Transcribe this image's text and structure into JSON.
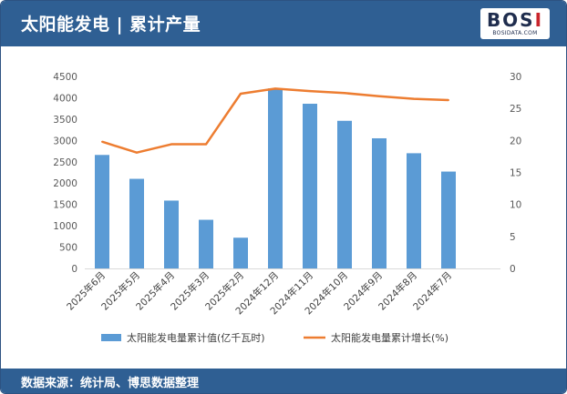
{
  "header": {
    "title": "太阳能发电 | 累计产量",
    "logo_text": "BOSI",
    "logo_subtext": "BOSIDATA.COM"
  },
  "footer": {
    "source": "数据来源：统计局、博思数据整理"
  },
  "colors": {
    "header_bg": "#2f5f93",
    "bar": "#5b9bd5",
    "line": "#ed7d31"
  },
  "chart_data": {
    "type": "bar",
    "categories": [
      "2025年6月",
      "2025年5月",
      "2025年4月",
      "2025年3月",
      "2025年2月",
      "2024年12月",
      "2024年11月",
      "2024年10月",
      "2024年9月",
      "2024年8月",
      "2024年7月"
    ],
    "series": [
      {
        "name": "太阳能发电量累计值(亿千瓦时)",
        "type": "bar",
        "axis": "left",
        "values": [
          2660,
          2100,
          1590,
          1140,
          720,
          4220,
          3860,
          3460,
          3050,
          2700,
          2270
        ]
      },
      {
        "name": "太阳能发电量累计增长(%)",
        "type": "line",
        "axis": "right",
        "values": [
          19.8,
          18.1,
          19.4,
          19.4,
          27.3,
          28.1,
          27.7,
          27.4,
          26.9,
          26.5,
          26.3
        ]
      }
    ],
    "ylim_left": [
      0,
      4500
    ],
    "ylim_right": [
      0,
      30
    ],
    "yticks_left": [
      "0",
      "500",
      "1000",
      "1500",
      "2000",
      "2500",
      "3000",
      "3500",
      "4000",
      "4500"
    ],
    "yticks_right": [
      "0",
      "5",
      "10",
      "15",
      "20",
      "25",
      "30"
    ],
    "grid": false,
    "legend_position": "bottom"
  }
}
